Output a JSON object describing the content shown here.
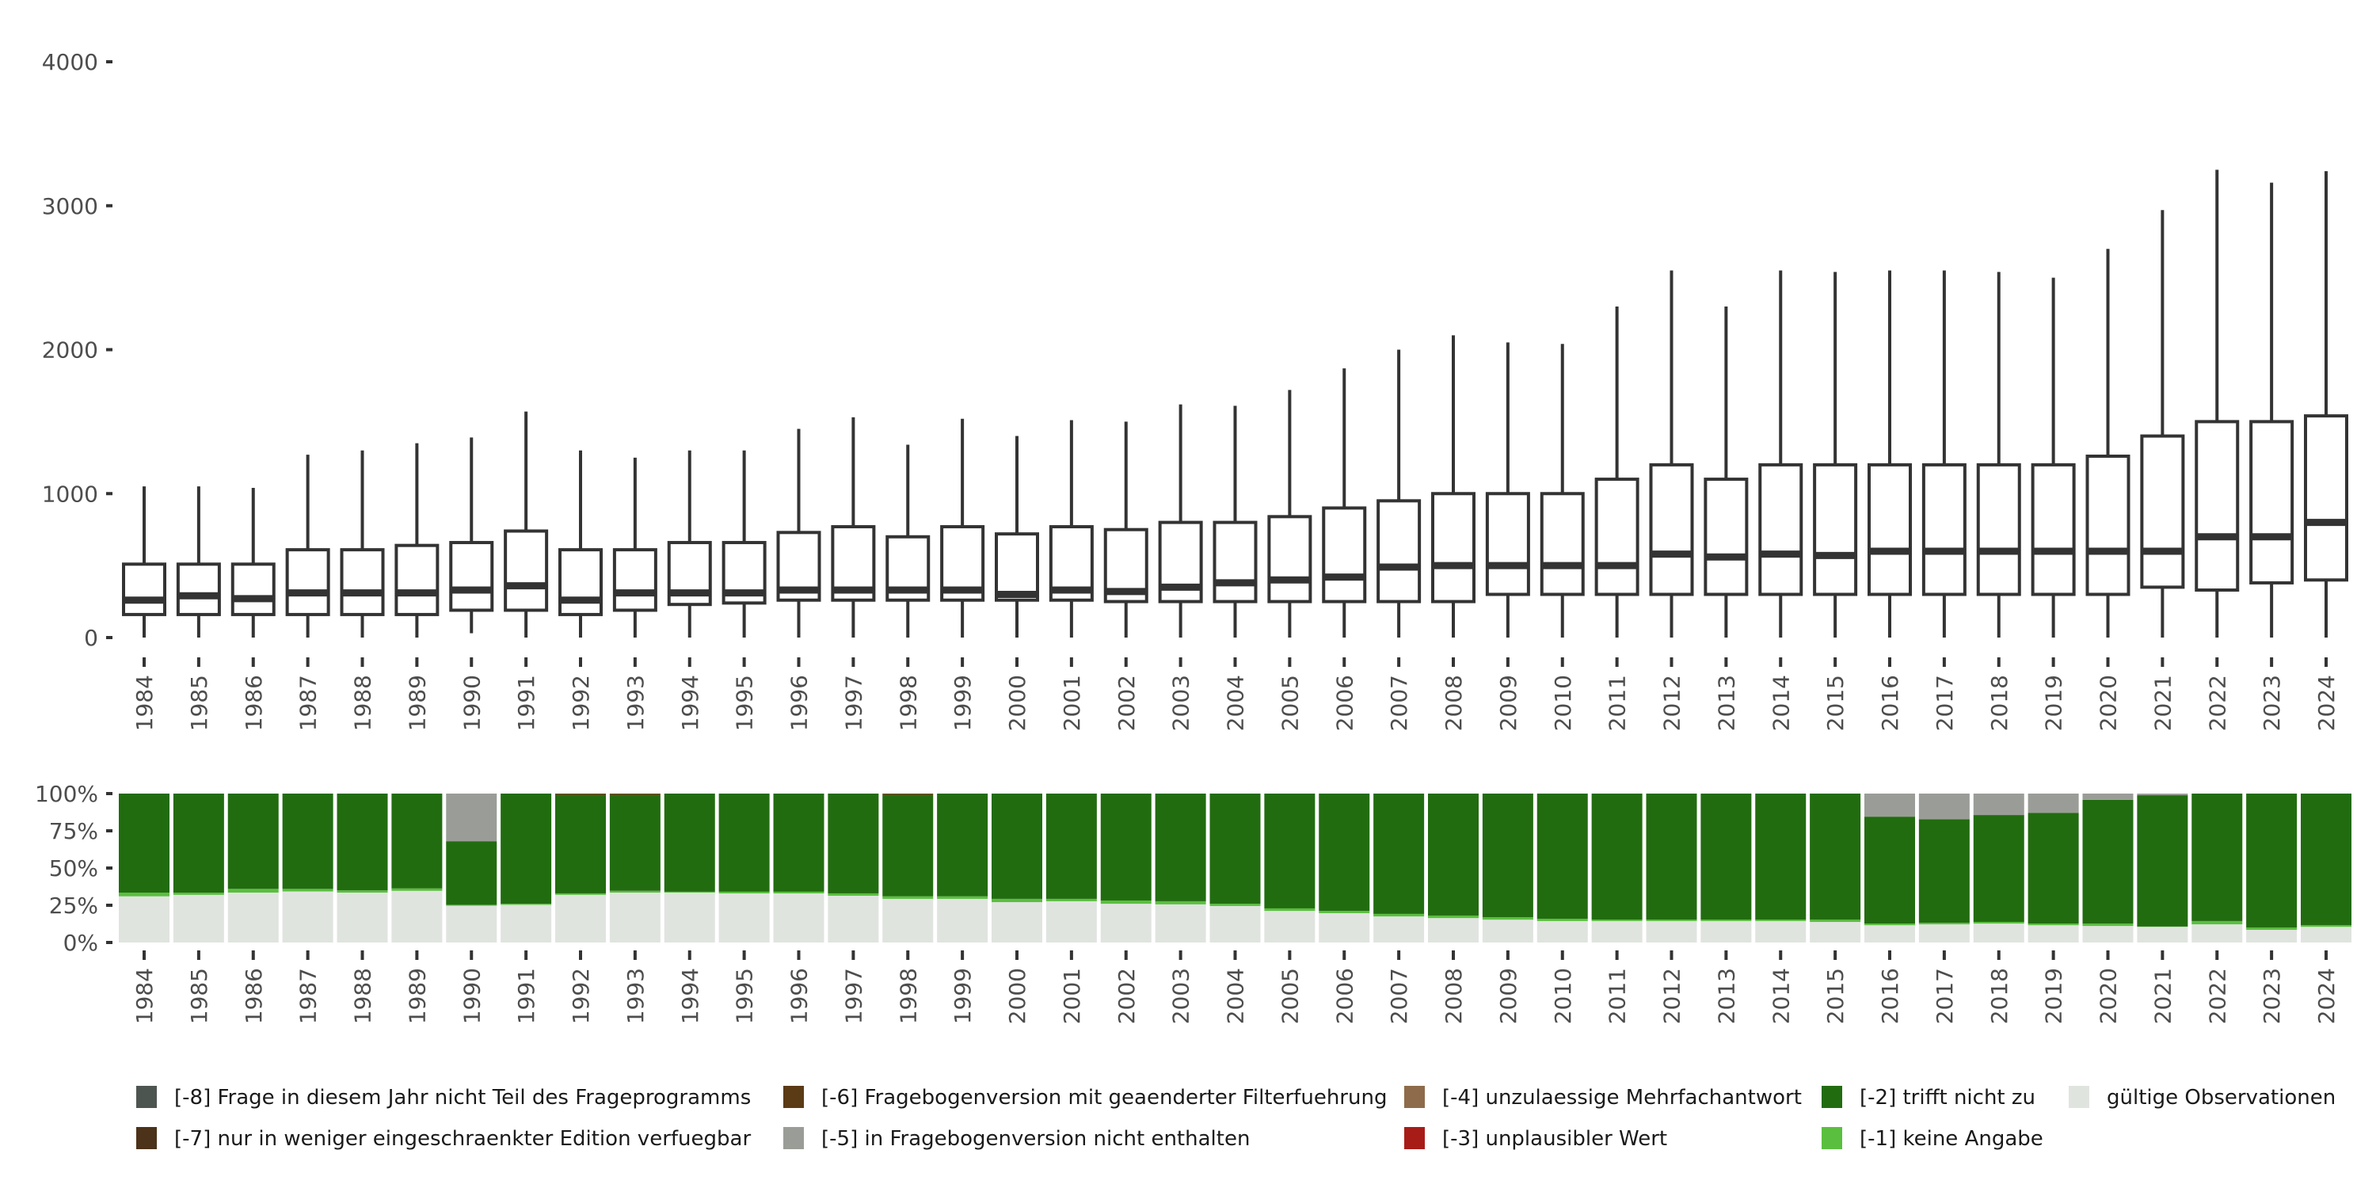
{
  "chart_data": [
    {
      "type": "boxplot",
      "title": "",
      "xlabel": "",
      "ylabel": "",
      "ylim": [
        0,
        4000
      ],
      "yticks": [
        "0",
        "1000",
        "2000",
        "3000",
        "4000"
      ],
      "ytick_values": [
        0,
        1000,
        2000,
        3000,
        4000
      ],
      "grid": false,
      "categories": [
        "1984",
        "1985",
        "1986",
        "1987",
        "1988",
        "1989",
        "1990",
        "1991",
        "1992",
        "1993",
        "1994",
        "1995",
        "1996",
        "1997",
        "1998",
        "1999",
        "2000",
        "2001",
        "2002",
        "2003",
        "2004",
        "2005",
        "2006",
        "2007",
        "2008",
        "2009",
        "2010",
        "2011",
        "2012",
        "2013",
        "2014",
        "2015",
        "2016",
        "2017",
        "2018",
        "2019",
        "2020",
        "2021",
        "2022",
        "2023",
        "2024"
      ],
      "boxes": [
        [
          0,
          160,
          260,
          510,
          1050
        ],
        [
          0,
          160,
          290,
          510,
          1050
        ],
        [
          0,
          160,
          270,
          510,
          1040
        ],
        [
          0,
          160,
          310,
          610,
          1270
        ],
        [
          0,
          160,
          310,
          610,
          1300
        ],
        [
          0,
          160,
          310,
          640,
          1350
        ],
        [
          30,
          190,
          330,
          660,
          1390
        ],
        [
          0,
          190,
          360,
          740,
          1570
        ],
        [
          0,
          160,
          260,
          610,
          1300
        ],
        [
          0,
          190,
          310,
          610,
          1250
        ],
        [
          0,
          230,
          310,
          660,
          1300
        ],
        [
          0,
          240,
          310,
          660,
          1300
        ],
        [
          0,
          260,
          330,
          730,
          1450
        ],
        [
          0,
          260,
          330,
          770,
          1530
        ],
        [
          0,
          260,
          330,
          700,
          1340
        ],
        [
          0,
          260,
          330,
          770,
          1520
        ],
        [
          0,
          260,
          300,
          720,
          1400
        ],
        [
          0,
          260,
          330,
          770,
          1510
        ],
        [
          0,
          250,
          320,
          750,
          1500
        ],
        [
          0,
          250,
          350,
          800,
          1620
        ],
        [
          0,
          250,
          380,
          800,
          1610
        ],
        [
          0,
          250,
          400,
          840,
          1720
        ],
        [
          0,
          250,
          420,
          900,
          1870
        ],
        [
          0,
          250,
          490,
          950,
          2000
        ],
        [
          0,
          250,
          500,
          1000,
          2100
        ],
        [
          0,
          300,
          500,
          1000,
          2050
        ],
        [
          0,
          300,
          500,
          1000,
          2040
        ],
        [
          0,
          300,
          500,
          1100,
          2300
        ],
        [
          0,
          300,
          580,
          1200,
          2550
        ],
        [
          0,
          300,
          560,
          1100,
          2300
        ],
        [
          0,
          300,
          580,
          1200,
          2550
        ],
        [
          0,
          300,
          570,
          1200,
          2540
        ],
        [
          0,
          300,
          600,
          1200,
          2550
        ],
        [
          0,
          300,
          600,
          1200,
          2550
        ],
        [
          0,
          300,
          600,
          1200,
          2540
        ],
        [
          0,
          300,
          600,
          1200,
          2500
        ],
        [
          0,
          300,
          600,
          1260,
          2700
        ],
        [
          0,
          350,
          600,
          1400,
          2970
        ],
        [
          0,
          330,
          700,
          1500,
          3250
        ],
        [
          0,
          380,
          700,
          1500,
          3160
        ],
        [
          0,
          400,
          800,
          1540,
          3240
        ]
      ],
      "box_fields": [
        "lower_whisker",
        "q1",
        "median",
        "q3",
        "upper_whisker"
      ]
    },
    {
      "type": "stacked_bar",
      "ylim": [
        0,
        100
      ],
      "yticks": [
        "0%",
        "25%",
        "50%",
        "75%",
        "100%"
      ],
      "ytick_values": [
        0,
        25,
        50,
        75,
        100
      ],
      "categories": [
        "1984",
        "1985",
        "1986",
        "1987",
        "1988",
        "1989",
        "1990",
        "1991",
        "1992",
        "1993",
        "1994",
        "1995",
        "1996",
        "1997",
        "1998",
        "1999",
        "2000",
        "2001",
        "2002",
        "2003",
        "2004",
        "2005",
        "2006",
        "2007",
        "2008",
        "2009",
        "2010",
        "2011",
        "2012",
        "2013",
        "2014",
        "2015",
        "2016",
        "2017",
        "2018",
        "2019",
        "2020",
        "2021",
        "2022",
        "2023",
        "2024"
      ],
      "stack_order": [
        "valid",
        "minus1",
        "minus2",
        "minus5",
        "minus3"
      ],
      "series": [
        {
          "key": "valid",
          "name": "gültige Observationen",
          "values": [
            31,
            32,
            33.5,
            34.3,
            33.5,
            34.7,
            24.7,
            25.3,
            32,
            33.5,
            33.5,
            33,
            33,
            31.4,
            29.3,
            29.3,
            27.1,
            27.7,
            26,
            25.6,
            24.5,
            21.2,
            19.7,
            17.5,
            16.4,
            15.3,
            14.4,
            14.4,
            14.4,
            14.4,
            14.4,
            13.8,
            11.6,
            12.2,
            12.7,
            11.6,
            11.1,
            10.5,
            12.2,
            8.5,
            10.5
          ]
        },
        {
          "key": "minus1",
          "name": "[-1] keine Angabe",
          "values": [
            2.5,
            1.5,
            2.5,
            1.7,
            1.5,
            1.6,
            0.6,
            0.7,
            1,
            1.2,
            0.6,
            1.1,
            1.1,
            1.6,
            1.7,
            1.7,
            2.2,
            1.6,
            2.2,
            2.1,
            1.5,
            1.7,
            1.5,
            1.7,
            1.7,
            1.7,
            1.5,
            0.9,
            0.9,
            0.9,
            0.9,
            1.5,
            1.1,
            1.1,
            1.1,
            1.1,
            1.6,
            0.2,
            2.2,
            1.5,
            1.1
          ]
        },
        {
          "key": "minus5",
          "name": "[-5] in Fragebogenversion nicht enthalten",
          "values": [
            0,
            0,
            0,
            0,
            0,
            0,
            32,
            0,
            0,
            0,
            0,
            0,
            0,
            0,
            0,
            0,
            0,
            0,
            0,
            0,
            0,
            0,
            0,
            0,
            0,
            0,
            0,
            0,
            0,
            0,
            0,
            0,
            15.5,
            17.2,
            14.4,
            12.9,
            4.2,
            1.1,
            0,
            0,
            0
          ]
        },
        {
          "key": "minus3",
          "name": "[-3] unplausibler Wert",
          "values": [
            0,
            0,
            0,
            0,
            0,
            0,
            0,
            0,
            0.5,
            0.5,
            0,
            0,
            0,
            0,
            0.5,
            0,
            0,
            0,
            0,
            0,
            0,
            0,
            0,
            0,
            0,
            0,
            0,
            0,
            0,
            0,
            0,
            0,
            0,
            0,
            0,
            0,
            0,
            0,
            0,
            0,
            0
          ]
        }
      ],
      "remainder_series": {
        "key": "minus2",
        "name": "[-2] trifft nicht zu"
      },
      "legend_position": "bottom"
    }
  ],
  "legend": [
    {
      "label": "[-8] Frage in diesem Jahr nicht Teil des Frageprogramms",
      "color": "#4d5550"
    },
    {
      "label": "[-7] nur in weniger eingeschraenkter Edition verfuegbar",
      "color": "#4b3218"
    },
    {
      "label": "[-6] Fragebogenversion mit geaenderter Filterfuehrung",
      "color": "#5b3a16"
    },
    {
      "label": "[-5] in Fragebogenversion nicht enthalten",
      "color": "#9a9d97"
    },
    {
      "label": "[-4] unzulaessige Mehrfachantwort",
      "color": "#8e6b4a"
    },
    {
      "label": "[-3] unplausibler Wert",
      "color": "#a81c18"
    },
    {
      "label": "[-2] trifft nicht zu",
      "color": "#226c10"
    },
    {
      "label": "[-1] keine Angabe",
      "color": "#5abf3f"
    },
    {
      "label": "gültige Observationen",
      "color": "#e0e4df"
    }
  ],
  "colors": {
    "valid": "#e0e4df",
    "minus1": "#5abf3f",
    "minus2": "#226c10",
    "minus5": "#9a9d97",
    "minus3": "#a81c18",
    "box_line": "#333333",
    "axis_text": "#4d4d4d"
  }
}
